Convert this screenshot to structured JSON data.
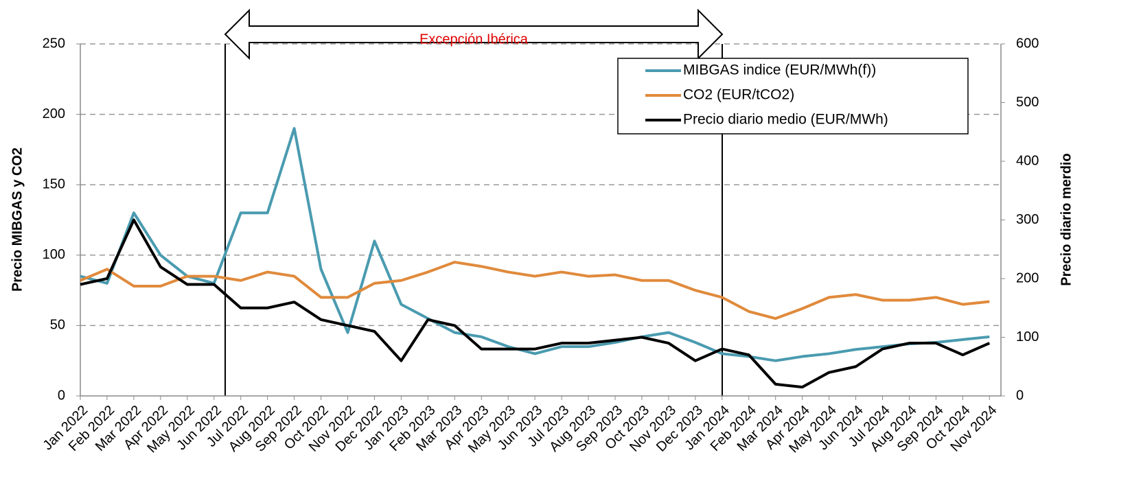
{
  "chart_data": {
    "type": "line",
    "annotation": "Excepción Ibérica",
    "ylabel": "Precio MIBGAS y CO2",
    "y2label": "Precio diario merdio",
    "categories": [
      "Jan 2022",
      "Feb 2022",
      "Mar 2022",
      "Apr 2022",
      "May 2022",
      "Jun 2022",
      "Jul 2022",
      "Aug 2022",
      "Sep 2022",
      "Oct 2022",
      "Nov 2022",
      "Dec 2022",
      "Jan 2023",
      "Feb 2023",
      "Mar 2023",
      "Apr 2023",
      "May 2023",
      "Jun 2023",
      "Jul 2023",
      "Aug 2023",
      "Sep 2023",
      "Oct 2023",
      "Nov 2023",
      "Dec 2023",
      "Jan 2024",
      "Feb 2024",
      "Mar 2024",
      "Apr 2024",
      "May 2024",
      "Jun 2024",
      "Jul 2024",
      "Aug 2024",
      "Sep 2024",
      "Oct 2024",
      "Nov 2024"
    ],
    "series": [
      {
        "name": "MIBGAS indice (EUR/MWh(f))",
        "color": "#4a9bb0",
        "values": [
          85,
          80,
          130,
          100,
          85,
          80,
          130,
          130,
          190,
          90,
          45,
          110,
          65,
          55,
          45,
          42,
          35,
          30,
          35,
          35,
          38,
          42,
          45,
          38,
          30,
          28,
          25,
          28,
          30,
          33,
          35,
          37,
          38,
          40,
          42
        ]
      },
      {
        "name": "CO2 (EUR/tCO2)",
        "color": "#e08a3c",
        "values": [
          82,
          90,
          78,
          78,
          85,
          85,
          82,
          88,
          85,
          70,
          70,
          80,
          82,
          88,
          95,
          92,
          88,
          85,
          88,
          85,
          86,
          82,
          82,
          75,
          70,
          60,
          55,
          62,
          70,
          72,
          68,
          68,
          70,
          65,
          67
        ]
      },
      {
        "name": "Precio diario medio (EUR/MWh)",
        "color": "#000000",
        "axis": "y2",
        "values": [
          190,
          200,
          300,
          220,
          190,
          190,
          150,
          150,
          160,
          130,
          120,
          110,
          60,
          130,
          120,
          80,
          80,
          80,
          90,
          90,
          95,
          100,
          90,
          60,
          80,
          70,
          20,
          15,
          40,
          50,
          80,
          90,
          90,
          70,
          90
        ]
      }
    ],
    "ylim": [
      0,
      250
    ],
    "yticks": [
      0,
      50,
      100,
      150,
      200,
      250
    ],
    "y2lim": [
      0,
      600
    ],
    "y2ticks": [
      0,
      100,
      200,
      300,
      400,
      500,
      600
    ],
    "grid": true,
    "legend": "upper right"
  }
}
